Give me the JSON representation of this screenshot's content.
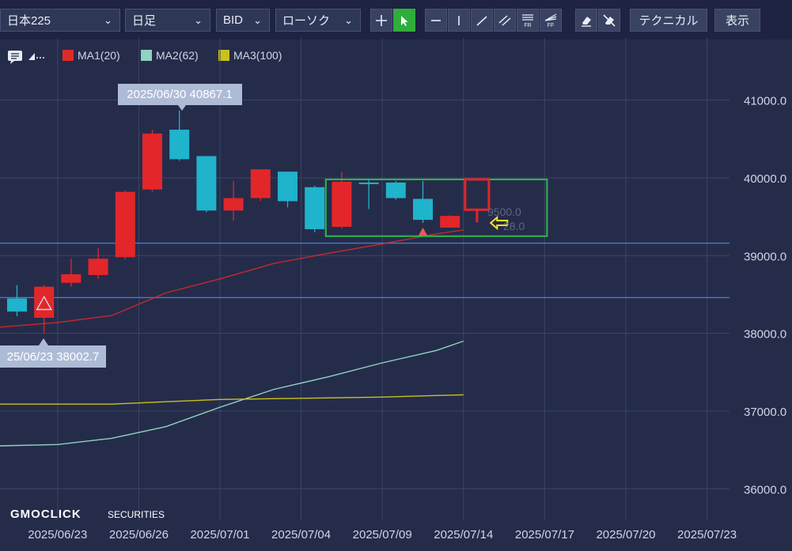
{
  "toolbar": {
    "symbol": "日本225",
    "period": "日足",
    "price_type": "BID",
    "chart_style": "ローソク",
    "technical_label": "テクニカル",
    "display_label": "表示",
    "tools": [
      "crosshair-tool",
      "pointer-tool",
      "horizontal-line-tool",
      "vertical-line-tool",
      "trend-line-tool",
      "channel-tool",
      "fibonacci-retracement-tool",
      "fibonacci-fan-tool",
      "eraser-tool",
      "erase-all-tool"
    ],
    "tool_labels": {
      "fr": "FR",
      "ff": "FF"
    }
  },
  "legend": {
    "items": [
      {
        "label": "MA1(20)",
        "color": "#e02a2a"
      },
      {
        "label": "MA2(62)",
        "color": "#8fd3c0"
      },
      {
        "label": "MA3(100)",
        "color": "#c9c21d"
      }
    ]
  },
  "annotations": {
    "high_label": "2025/06/30 40867.1",
    "low_label": "25/06/23 38002.7",
    "hidden_price_1": "9500.0",
    "hidden_price_2": "28.0"
  },
  "watermark": {
    "brand": "GMOCLICK",
    "sub": "SECURITIES"
  },
  "colors": {
    "up": "#e3262a",
    "down": "#1fb3cc",
    "box": "#2fb84a",
    "arrow": "#f4e421",
    "hline": "#4a78c9"
  },
  "chart_data": {
    "type": "candlestick",
    "yticks": [
      "41000.0",
      "40000.0",
      "39000.0",
      "38000.0",
      "37000.0",
      "36000.0"
    ],
    "ytick_values": [
      41000,
      40000,
      39000,
      38000,
      37000,
      36000
    ],
    "xticks": [
      "2025/06/23",
      "2025/06/26",
      "2025/07/01",
      "2025/07/04",
      "2025/07/09",
      "2025/07/14",
      "2025/07/17",
      "2025/07/20",
      "2025/07/23"
    ],
    "x_domain": [
      0,
      28
    ],
    "y_domain": [
      35800,
      41800
    ],
    "xtick_positions": [
      1.5,
      4.5,
      7.5,
      10.5,
      13.5,
      16.5,
      19.5,
      22.5,
      25.5
    ],
    "candles": [
      {
        "i": 0,
        "o": 38450,
        "h": 38620,
        "l": 38220,
        "c": 38280
      },
      {
        "i": 1,
        "o": 38200,
        "h": 38620,
        "l": 38002.7,
        "c": 38600
      },
      {
        "i": 2,
        "o": 38650,
        "h": 38960,
        "l": 38600,
        "c": 38760
      },
      {
        "i": 3,
        "o": 38750,
        "h": 39100,
        "l": 38700,
        "c": 38960
      },
      {
        "i": 4,
        "o": 38980,
        "h": 39840,
        "l": 38950,
        "c": 39820
      },
      {
        "i": 5,
        "o": 39850,
        "h": 40620,
        "l": 39820,
        "c": 40570
      },
      {
        "i": 6,
        "o": 40620,
        "h": 40867.1,
        "l": 40220,
        "c": 40240
      },
      {
        "i": 7,
        "o": 40280,
        "h": 40280,
        "l": 39560,
        "c": 39580
      },
      {
        "i": 8,
        "o": 39580,
        "h": 39960,
        "l": 39450,
        "c": 39740
      },
      {
        "i": 9,
        "o": 39740,
        "h": 40100,
        "l": 39700,
        "c": 40110
      },
      {
        "i": 10,
        "o": 40080,
        "h": 40080,
        "l": 39620,
        "c": 39700
      },
      {
        "i": 11,
        "o": 39880,
        "h": 39900,
        "l": 39300,
        "c": 39340
      },
      {
        "i": 12,
        "o": 39370,
        "h": 40080,
        "l": 39350,
        "c": 39950
      },
      {
        "i": 13,
        "o": 39940,
        "h": 39980,
        "l": 39600,
        "c": 39920
      },
      {
        "i": 14,
        "o": 39940,
        "h": 39960,
        "l": 39720,
        "c": 39740
      },
      {
        "i": 15,
        "o": 39730,
        "h": 39960,
        "l": 39420,
        "c": 39460
      },
      {
        "i": 16,
        "o": 39360,
        "h": 39520,
        "l": 39360,
        "c": 39510
      }
    ],
    "ma_series": [
      {
        "name": "MA1(20)",
        "points": [
          [
            -1,
            38070
          ],
          [
            1.5,
            38140
          ],
          [
            3.5,
            38230
          ],
          [
            5.5,
            38520
          ],
          [
            7.5,
            38700
          ],
          [
            9.5,
            38900
          ],
          [
            11.5,
            39030
          ],
          [
            13.5,
            39150
          ],
          [
            15.5,
            39280
          ],
          [
            16.5,
            39330
          ]
        ]
      },
      {
        "name": "MA2(62)",
        "points": [
          [
            -1,
            36550
          ],
          [
            1.5,
            36570
          ],
          [
            3.5,
            36650
          ],
          [
            5.5,
            36800
          ],
          [
            7.5,
            37050
          ],
          [
            9.5,
            37280
          ],
          [
            11.5,
            37440
          ],
          [
            13.5,
            37620
          ],
          [
            15.5,
            37780
          ],
          [
            16.5,
            37900
          ]
        ]
      },
      {
        "name": "MA3(100)",
        "points": [
          [
            -1,
            37090
          ],
          [
            1.5,
            37090
          ],
          [
            3.5,
            37090
          ],
          [
            5.5,
            37120
          ],
          [
            7.5,
            37150
          ],
          [
            9.5,
            37160
          ],
          [
            11.5,
            37170
          ],
          [
            13.5,
            37180
          ],
          [
            15.5,
            37200
          ],
          [
            16.5,
            37210
          ]
        ]
      }
    ],
    "hlines": [
      39160,
      38460
    ],
    "signal_up_arrows": [
      {
        "i": 1,
        "y": 38380
      },
      {
        "i": 15,
        "y": 39300
      }
    ],
    "box": {
      "i0": 11.5,
      "i1": 19.5,
      "y0": 39250,
      "y1": 39980
    },
    "red_marker": {
      "i": 17,
      "y0": 39590,
      "y1": 39980
    },
    "yellow_arrow": {
      "i": 17.8,
      "y": 39420
    }
  }
}
